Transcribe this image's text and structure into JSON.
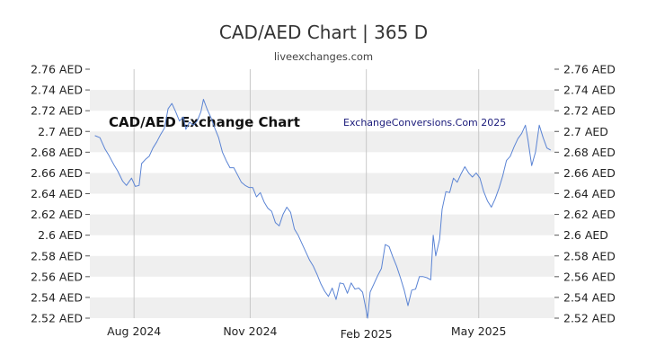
{
  "header": {
    "title": "CAD/AED Chart | 365 D",
    "subtitle": "liveexchanges.com"
  },
  "watermarks": {
    "left": "CAD/AED Exchange Chart",
    "right": "ExchangeConversions.Com 2025"
  },
  "colors": {
    "line": "#5b84d4",
    "band": "#efefef",
    "grid_vertical": "#c8c8c8"
  },
  "chart_data": {
    "type": "line",
    "title": "CAD/AED Chart | 365 D",
    "xlabel": "",
    "ylabel": "",
    "ylim": [
      2.52,
      2.76
    ],
    "y_ticks": [
      2.52,
      2.54,
      2.56,
      2.58,
      2.6,
      2.62,
      2.64,
      2.66,
      2.68,
      2.7,
      2.72,
      2.74,
      2.76
    ],
    "y_tick_labels": [
      "2.52 AED",
      "2.54 AED",
      "2.56 AED",
      "2.58 AED",
      "2.6 AED",
      "2.62 AED",
      "2.64 AED",
      "2.66 AED",
      "2.68 AED",
      "2.7 AED",
      "2.72 AED",
      "2.74 AED",
      "2.76 AED"
    ],
    "xlim": [
      "2024-06-27",
      "2025-06-30"
    ],
    "x_ticks": [
      {
        "date": "2024-08-01",
        "label": "Aug 2024"
      },
      {
        "date": "2024-11-01",
        "label": "Nov 2024"
      },
      {
        "date": "2025-02-01",
        "label": "Feb 2025"
      },
      {
        "date": "2025-05-01",
        "label": "May 2025"
      }
    ],
    "grid": true,
    "series": [
      {
        "values": [
          [
            "2024-07-01",
            2.696
          ],
          [
            "2024-07-05",
            2.694
          ],
          [
            "2024-07-09",
            2.683
          ],
          [
            "2024-07-12",
            2.677
          ],
          [
            "2024-07-16",
            2.668
          ],
          [
            "2024-07-19",
            2.662
          ],
          [
            "2024-07-23",
            2.652
          ],
          [
            "2024-07-26",
            2.648
          ],
          [
            "2024-07-30",
            2.655
          ],
          [
            "2024-08-02",
            2.647
          ],
          [
            "2024-08-05",
            2.648
          ],
          [
            "2024-08-07",
            2.669
          ],
          [
            "2024-08-10",
            2.673
          ],
          [
            "2024-08-13",
            2.676
          ],
          [
            "2024-08-16",
            2.684
          ],
          [
            "2024-08-19",
            2.69
          ],
          [
            "2024-08-22",
            2.697
          ],
          [
            "2024-08-25",
            2.703
          ],
          [
            "2024-08-28",
            2.722
          ],
          [
            "2024-08-31",
            2.727
          ],
          [
            "2024-09-03",
            2.719
          ],
          [
            "2024-09-06",
            2.71
          ],
          [
            "2024-09-09",
            2.714
          ],
          [
            "2024-09-11",
            2.702
          ],
          [
            "2024-09-14",
            2.709
          ],
          [
            "2024-09-17",
            2.706
          ],
          [
            "2024-09-20",
            2.71
          ],
          [
            "2024-09-23",
            2.719
          ],
          [
            "2024-09-25",
            2.731
          ],
          [
            "2024-09-28",
            2.721
          ],
          [
            "2024-10-01",
            2.713
          ],
          [
            "2024-10-04",
            2.703
          ],
          [
            "2024-10-07",
            2.694
          ],
          [
            "2024-10-10",
            2.68
          ],
          [
            "2024-10-13",
            2.672
          ],
          [
            "2024-10-16",
            2.665
          ],
          [
            "2024-10-19",
            2.665
          ],
          [
            "2024-10-22",
            2.658
          ],
          [
            "2024-10-25",
            2.651
          ],
          [
            "2024-10-28",
            2.648
          ],
          [
            "2024-10-31",
            2.646
          ],
          [
            "2024-11-03",
            2.646
          ],
          [
            "2024-11-06",
            2.637
          ],
          [
            "2024-11-09",
            2.641
          ],
          [
            "2024-11-12",
            2.632
          ],
          [
            "2024-11-15",
            2.626
          ],
          [
            "2024-11-18",
            2.623
          ],
          [
            "2024-11-21",
            2.612
          ],
          [
            "2024-11-24",
            2.609
          ],
          [
            "2024-11-27",
            2.62
          ],
          [
            "2024-11-30",
            2.627
          ],
          [
            "2024-12-03",
            2.622
          ],
          [
            "2024-12-06",
            2.606
          ],
          [
            "2024-12-09",
            2.6
          ],
          [
            "2024-12-12",
            2.592
          ],
          [
            "2024-12-15",
            2.584
          ],
          [
            "2024-12-18",
            2.576
          ],
          [
            "2024-12-21",
            2.57
          ],
          [
            "2024-12-24",
            2.562
          ],
          [
            "2024-12-27",
            2.553
          ],
          [
            "2024-12-30",
            2.546
          ],
          [
            "2025-01-02",
            2.541
          ],
          [
            "2025-01-05",
            2.549
          ],
          [
            "2025-01-08",
            2.538
          ],
          [
            "2025-01-11",
            2.554
          ],
          [
            "2025-01-14",
            2.553
          ],
          [
            "2025-01-17",
            2.544
          ],
          [
            "2025-01-20",
            2.554
          ],
          [
            "2025-01-23",
            2.548
          ],
          [
            "2025-01-26",
            2.549
          ],
          [
            "2025-01-29",
            2.545
          ],
          [
            "2025-01-31",
            2.533
          ],
          [
            "2025-02-02",
            2.52
          ],
          [
            "2025-02-04",
            2.545
          ],
          [
            "2025-02-07",
            2.553
          ],
          [
            "2025-02-10",
            2.561
          ],
          [
            "2025-02-13",
            2.568
          ],
          [
            "2025-02-16",
            2.591
          ],
          [
            "2025-02-19",
            2.589
          ],
          [
            "2025-02-22",
            2.579
          ],
          [
            "2025-02-25",
            2.57
          ],
          [
            "2025-02-28",
            2.559
          ],
          [
            "2025-03-03",
            2.547
          ],
          [
            "2025-03-06",
            2.532
          ],
          [
            "2025-03-09",
            2.547
          ],
          [
            "2025-03-12",
            2.548
          ],
          [
            "2025-03-15",
            2.56
          ],
          [
            "2025-03-18",
            2.56
          ],
          [
            "2025-03-21",
            2.559
          ],
          [
            "2025-03-24",
            2.557
          ],
          [
            "2025-03-26",
            2.6
          ],
          [
            "2025-03-28",
            2.58
          ],
          [
            "2025-03-31",
            2.596
          ],
          [
            "2025-04-02",
            2.625
          ],
          [
            "2025-04-05",
            2.642
          ],
          [
            "2025-04-08",
            2.641
          ],
          [
            "2025-04-11",
            2.655
          ],
          [
            "2025-04-14",
            2.651
          ],
          [
            "2025-04-17",
            2.659
          ],
          [
            "2025-04-20",
            2.666
          ],
          [
            "2025-04-23",
            2.66
          ],
          [
            "2025-04-26",
            2.656
          ],
          [
            "2025-04-29",
            2.66
          ],
          [
            "2025-05-02",
            2.655
          ],
          [
            "2025-05-05",
            2.642
          ],
          [
            "2025-05-08",
            2.633
          ],
          [
            "2025-05-11",
            2.627
          ],
          [
            "2025-05-14",
            2.635
          ],
          [
            "2025-05-17",
            2.645
          ],
          [
            "2025-05-20",
            2.657
          ],
          [
            "2025-05-23",
            2.672
          ],
          [
            "2025-05-26",
            2.676
          ],
          [
            "2025-05-29",
            2.685
          ],
          [
            "2025-06-01",
            2.693
          ],
          [
            "2025-06-04",
            2.698
          ],
          [
            "2025-06-07",
            2.706
          ],
          [
            "2025-06-09",
            2.692
          ],
          [
            "2025-06-12",
            2.667
          ],
          [
            "2025-06-15",
            2.68
          ],
          [
            "2025-06-18",
            2.706
          ],
          [
            "2025-06-21",
            2.694
          ],
          [
            "2025-06-24",
            2.684
          ],
          [
            "2025-06-27",
            2.682
          ]
        ]
      }
    ]
  }
}
